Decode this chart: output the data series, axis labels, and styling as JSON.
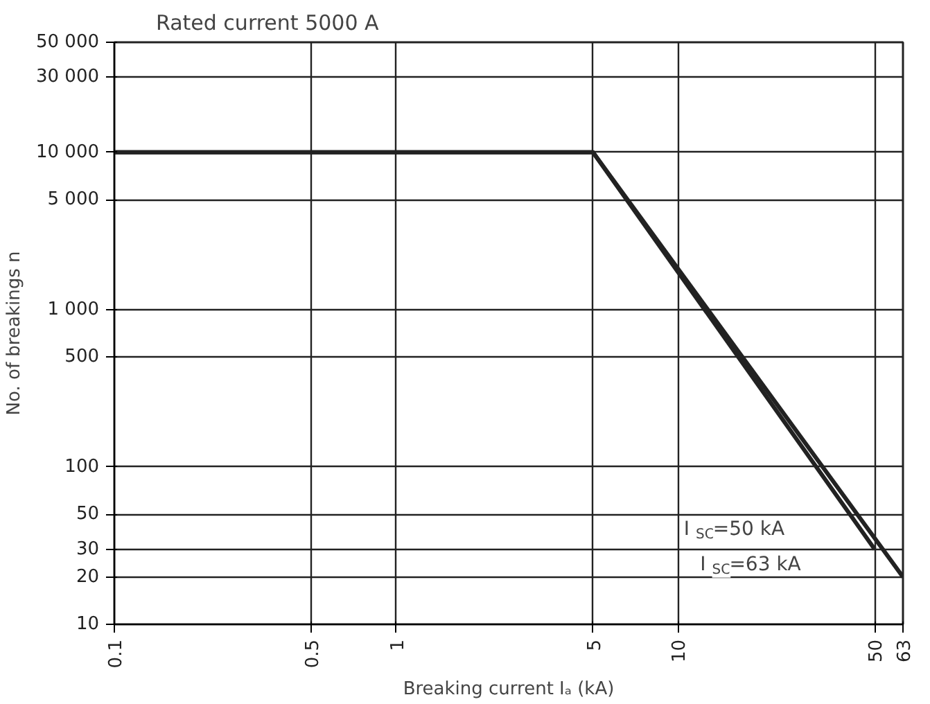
{
  "chart_data": {
    "type": "line",
    "title": "Rated current 5000 A",
    "xlabel": "Breaking current Iₐ (kA)",
    "ylabel": "No. of breakings n",
    "series": [
      {
        "color": "#222222",
        "x": [
          0.1,
          5,
          50
        ],
        "values": [
          10000,
          10000,
          30
        ]
      },
      {
        "color": "#222222",
        "x": [
          0.1,
          5,
          63
        ],
        "values": [
          10000,
          10000,
          20
        ]
      }
    ],
    "annotations": [
      "I$_{SC}$=50 kA",
      "I$_{SC}$=63 kA"
    ],
    "log": "xy",
    "xlim": [
      0.1,
      63
    ],
    "ylim": [
      10,
      50000
    ],
    "xticks": [
      0.1,
      0.5,
      1,
      5,
      10,
      50,
      63
    ],
    "yticks": [
      10,
      20,
      30,
      50,
      100,
      500,
      {
        "value": 1000,
        "label": "1 000"
      },
      {
        "value": 5000,
        "label": "5 000"
      },
      {
        "value": 10000,
        "label": "10 000"
      },
      {
        "value": 30000,
        "label": "30 000"
      },
      {
        "value": 50000,
        "label": "50 000"
      }
    ],
    "grid": true,
    "marker": "none",
    "line_style": "solid"
  }
}
